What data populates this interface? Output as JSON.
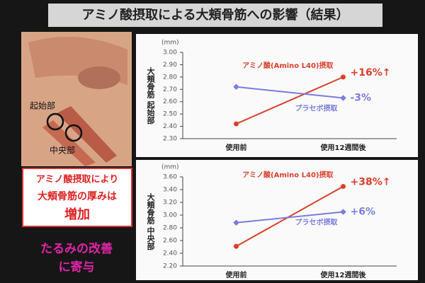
{
  "title": "アミノ酸摂取による大頬骨筋への影響（結果）",
  "figure": {
    "labels": [
      "起始部",
      "中央部"
    ]
  },
  "callout": {
    "lines": [
      "アミノ酸摂取により",
      "大頬骨筋の厚みは",
      "増加"
    ]
  },
  "conclusion": [
    "たるみの改善",
    "に寄与"
  ],
  "chart_data": [
    {
      "type": "line",
      "y_unit": "(mm)",
      "ylabel": "大頬骨筋 起始部",
      "categories": [
        "使用前",
        "使用12週間後"
      ],
      "series": [
        {
          "name": "アミノ酸(Amino L40)摂取",
          "color": "#d9402a",
          "values": [
            2.42,
            2.8
          ],
          "annotation": "+16%↑"
        },
        {
          "name": "プラセボ摂取",
          "color": "#7b7be0",
          "values": [
            2.72,
            2.63
          ],
          "annotation": "-3%"
        }
      ],
      "ylim": [
        2.3,
        3.0
      ],
      "yticks": [
        {
          "value": 2.3,
          "label": "2.30"
        },
        {
          "value": 2.4,
          "label": "2.40"
        },
        {
          "value": 2.5,
          "label": "2.50"
        },
        {
          "value": 2.6,
          "label": "2.60"
        },
        {
          "value": 2.7,
          "label": "2.70"
        },
        {
          "value": 2.8,
          "label": "2.80"
        },
        {
          "value": 2.9,
          "label": "2.90"
        },
        {
          "value": 3.0,
          "label": "3.00"
        }
      ]
    },
    {
      "type": "line",
      "y_unit": "(mm)",
      "ylabel": "大頬骨筋 中央部",
      "categories": [
        "使用前",
        "使用12週間後"
      ],
      "series": [
        {
          "name": "アミノ酸(Amino L40)摂取",
          "color": "#d9402a",
          "values": [
            2.51,
            3.45
          ],
          "annotation": "+38%↑"
        },
        {
          "name": "プラセボ摂取",
          "color": "#7b7be0",
          "values": [
            2.88,
            3.05
          ],
          "annotation": "+6%"
        }
      ],
      "ylim": [
        2.2,
        3.6
      ],
      "yticks": [
        {
          "value": 2.2,
          "label": "2.20"
        },
        {
          "value": 2.4,
          "label": "2.40"
        },
        {
          "value": 2.6,
          "label": "2.60"
        },
        {
          "value": 2.8,
          "label": "2.80"
        },
        {
          "value": 3.0,
          "label": "3.00"
        },
        {
          "value": 3.2,
          "label": "3.20"
        },
        {
          "value": 3.4,
          "label": "3.40"
        },
        {
          "value": 3.6,
          "label": "3.60"
        }
      ]
    }
  ]
}
